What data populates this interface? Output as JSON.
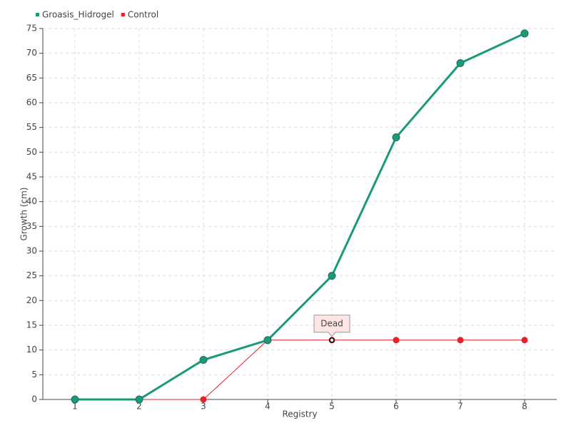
{
  "chart_data": {
    "type": "line",
    "x_label": "Registry",
    "y_label": "Growth (cm)",
    "x": [
      1,
      2,
      3,
      4,
      5,
      6,
      7,
      8
    ],
    "series": [
      {
        "name": "Groasis_Hidrogel",
        "color": "#1a9a7a",
        "values": [
          0,
          0,
          8,
          12,
          25,
          53,
          68,
          74
        ]
      },
      {
        "name": "Control",
        "color": "#e8202a",
        "values": [
          0,
          0,
          0,
          12,
          12,
          12,
          12,
          12
        ]
      }
    ],
    "xlim": [
      0.5,
      8.5
    ],
    "xticks": [
      1,
      2,
      3,
      4,
      5,
      6,
      7,
      8
    ],
    "ylim": [
      0,
      75
    ],
    "yticks": [
      0,
      5,
      10,
      15,
      20,
      25,
      30,
      35,
      40,
      45,
      50,
      55,
      60,
      65,
      70,
      75
    ],
    "grid": true,
    "annotations": [
      {
        "text": "Dead",
        "x": 5,
        "y": 12
      }
    ]
  }
}
